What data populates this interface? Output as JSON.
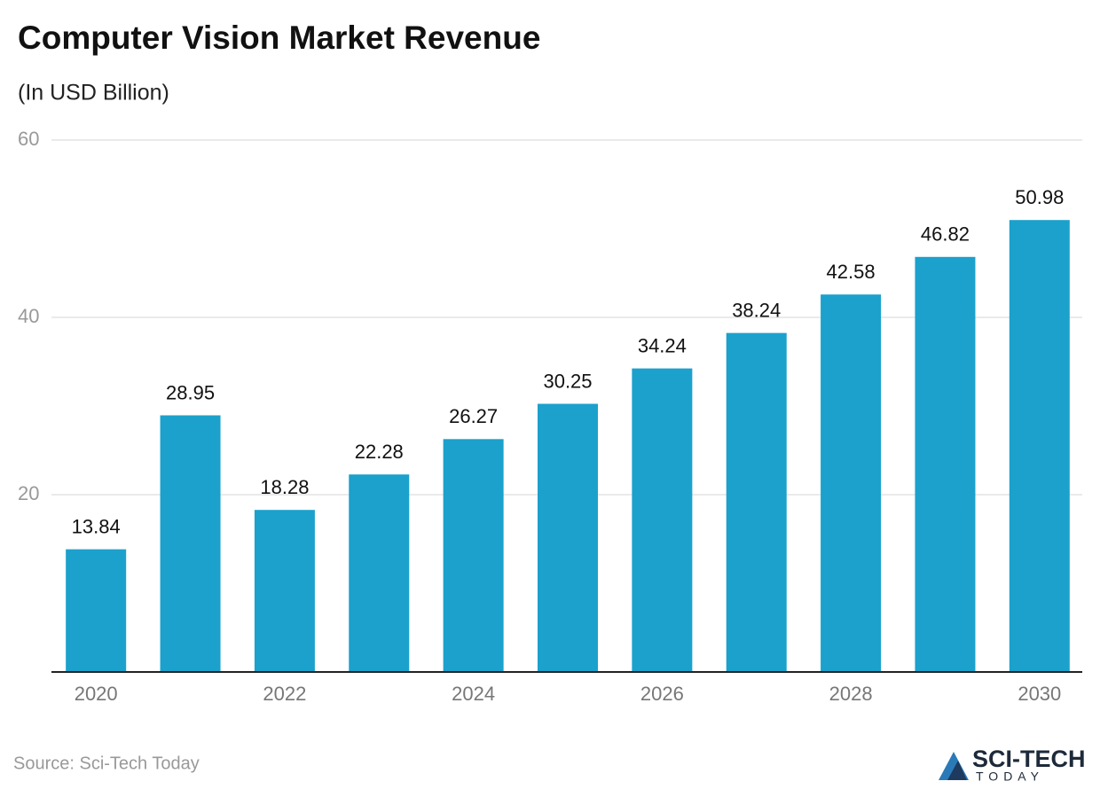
{
  "chart_data": {
    "type": "bar",
    "title": "Computer Vision Market Revenue",
    "subtitle": "(In USD Billion)",
    "categories": [
      "2020",
      null,
      "2022",
      null,
      "2024",
      null,
      "2026",
      null,
      "2028",
      null,
      "2030"
    ],
    "values": [
      13.84,
      28.95,
      18.28,
      22.28,
      26.27,
      30.25,
      34.24,
      38.24,
      42.58,
      46.82,
      50.98
    ],
    "color": "#1ba1cc",
    "ylim": [
      0,
      60
    ],
    "yticks": [
      20,
      40,
      60
    ],
    "grid": true,
    "source": "Source: Sci-Tech Today",
    "logo": {
      "name": "SCI-TECH",
      "tagline": "TODAY"
    }
  }
}
